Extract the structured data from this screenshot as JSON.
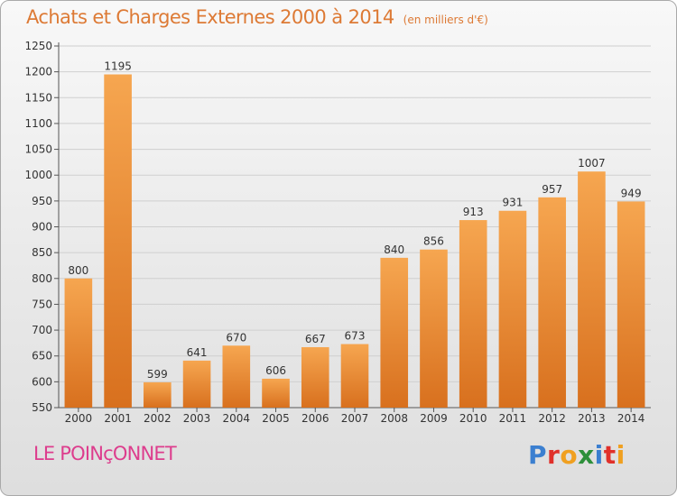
{
  "title": "Achats et Charges Externes 2000 à 2014",
  "subtitle": "(en milliers d'€)",
  "commune": "LE POINçONNET",
  "logo": {
    "letters": [
      "P",
      "r",
      "o",
      "x",
      "i",
      "t",
      "i"
    ],
    "colors": [
      "#3b7fd0",
      "#e0302a",
      "#f0a020",
      "#2d8f3a",
      "#3b7fd0",
      "#e0302a",
      "#f0a020"
    ]
  },
  "colors": {
    "bar_top": "#f6a650",
    "bar_bottom": "#d8701e",
    "grid": "#cfcfcf",
    "title": "#dd7a35",
    "commune": "#dd3d8d"
  },
  "chart_data": {
    "type": "bar",
    "categories": [
      "2000",
      "2001",
      "2002",
      "2003",
      "2004",
      "2005",
      "2006",
      "2007",
      "2008",
      "2009",
      "2010",
      "2011",
      "2012",
      "2013",
      "2014"
    ],
    "values": [
      800,
      1195,
      599,
      641,
      670,
      606,
      667,
      673,
      840,
      856,
      913,
      931,
      957,
      1007,
      949
    ],
    "ylim": [
      550,
      1250
    ],
    "yticks": [
      550,
      600,
      650,
      700,
      750,
      800,
      850,
      900,
      950,
      1000,
      1050,
      1100,
      1150,
      1200,
      1250
    ],
    "grid": true
  }
}
